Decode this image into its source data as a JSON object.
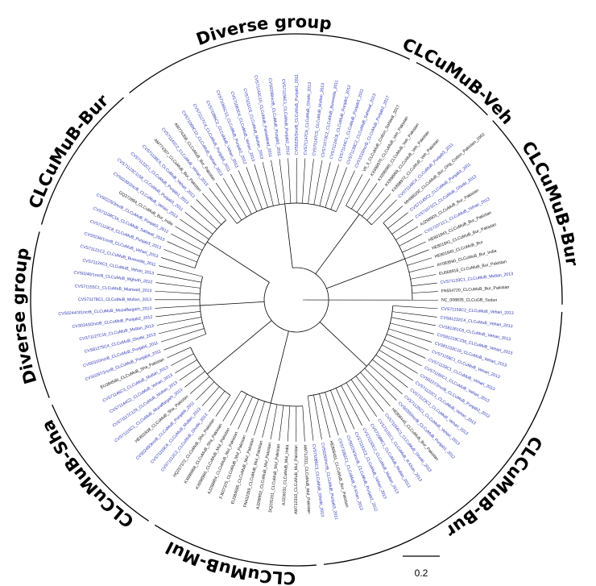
{
  "clades": [
    {
      "label": "Diverse group",
      "leaves": [
        {
          "label": "CVS71141C2_CLCuMuB_Vehari_2013",
          "color": "#2b35b5"
        },
        {
          "label": "AM774306_CLCuMuB_Bur_Pakistan",
          "color": "#111111"
        },
        {
          "label": "CVS71069C12_CLCuMuB_Vehari_2013",
          "color": "#2b35b5"
        },
        {
          "label": "CVS71127C4_CLCuMuB_Punjab5_2011",
          "color": "#2b35b5"
        },
        {
          "label": "CVS71086C2_CLCuMuB_Vehari_2013",
          "color": "#2b35b5"
        },
        {
          "label": "CVS71065C13_CLCuMuB_Punjab2_2012",
          "color": "#2b35b5"
        },
        {
          "label": "CVS71083C4_CLCuMuB_Vehari_2013",
          "color": "#2b35b5"
        },
        {
          "label": "CVS71111C6_CLCuMuB_Multan_2013",
          "color": "#2b35b5"
        },
        {
          "label": "CVS71143C10_CLCuMuB_Faisalabad_2011",
          "color": "#2b35b5"
        },
        {
          "label": "CVS0298/ncrB_CLCuMuB_Punjab1_2011",
          "color": "#2b35b5"
        },
        {
          "label": "CVS71156C1_CLCuMuB_Punjab2_2012",
          "color": "#2b35b5"
        },
        {
          "label": "CVS0229/2ncrB_CLCuMuB_Punjab1_2011",
          "color": "#2b35b5"
        },
        {
          "label": "CVS71147C6_CLCuMuB_Ghotki_2013",
          "color": "#2b35b5"
        },
        {
          "label": "CVS71147C5_CLCuMuB_Multan_2013",
          "color": "#2b35b5"
        },
        {
          "label": "CVS71073C2_CLCuMuB_Burewala_2011",
          "color": "#2b35b5"
        },
        {
          "label": "CVS71124C8_CLCuMuB_Punjab1_2012",
          "color": "#2b35b5"
        },
        {
          "label": "CVS71144C1_CLCuMuB_Punjab3_2011",
          "color": "#2b35b5"
        },
        {
          "label": "CVS71139C2_CLCuMuB_Sahiwal_2013",
          "color": "#2b35b5"
        },
        {
          "label": "CVS1510/ncrB_CLCuMuB_Punjab2_2017",
          "color": "#2b35b5"
        }
      ]
    },
    {
      "label": "CLCuMuB-Veh",
      "leaves": [
        {
          "label": "V8_3_CLCuMuB_Cotton_Sahiwal_2017",
          "color": "#111111"
        },
        {
          "label": "KX898970_CLCuMuB_Veh_Pakistan",
          "color": "#111111"
        },
        {
          "label": "KX898965_CLCuMuB_Veh_Pakistan",
          "color": "#111111"
        },
        {
          "label": "KX898969_CLCuMuB_Veh_Pakistan",
          "color": "#111111"
        },
        {
          "label": "KX898972_CLCuMuB_Veh_Pakistan",
          "color": "#111111"
        },
        {
          "label": "CVS71149C4_CLCuMuB_Punjab3_2011",
          "color": "#2b35b5"
        }
      ]
    },
    {
      "label": "CLCuMuB-Bur",
      "leaves": [
        {
          "label": "MH686202_CLCuMuB_Bur_Orig_Cotton_Pakistan_2002",
          "color": "#111111"
        },
        {
          "label": "CVS71145C2_CLCuMuB_Punjab3_2011",
          "color": "#2b35b5"
        },
        {
          "label": "CVS71071C1_CLCuMuB_Ghotki_2013",
          "color": "#2b35b5"
        },
        {
          "label": "AJ298903_CLCuMuB_Bur_Pakistan",
          "color": "#111111"
        },
        {
          "label": "CVS71071C1_CLCuMuB_Vehari_2013",
          "color": "#2b35b5"
        },
        {
          "label": "HE801843_CLCuMuB_Bur_Pakistan",
          "color": "#111111"
        },
        {
          "label": "HE801841_CLCuMuB_Bur_Pakistan",
          "color": "#111111"
        },
        {
          "label": "HE801840_CLCuMuB_Bur",
          "color": "#111111"
        },
        {
          "label": "AY083590_CLCuMuB_Bur_India",
          "color": "#111111"
        },
        {
          "label": "EU068918_CLCuMuB_Bur_Pakistan",
          "color": "#111111"
        },
        {
          "label": "CVS71133C1_CLCuMuB_Multan_2013",
          "color": "#2b35b5"
        },
        {
          "label": "FN554720_CLCuMuB_Bur_Pakistan",
          "color": "#111111"
        },
        {
          "label": "NC_008835_CLCuGB_Sudan",
          "color": "#111111"
        }
      ]
    },
    {
      "label": "CLCuMuB-Bur",
      "leaves": [
        {
          "label": "CVS71159C2_CLCuMuB_Vehari_2013",
          "color": "#2b35b5"
        },
        {
          "label": "CVS81232C4_CLCuMuB_Vehari_2013",
          "color": "#2b35b5"
        },
        {
          "label": "CVS81261C6_CLCuMuB_Vehari_2013",
          "color": "#2b35b5"
        },
        {
          "label": "CVS81219C236_CLCuMuB_Vehari_2013",
          "color": "#2b35b5"
        },
        {
          "label": "CVS81233C16_CLCuMuB_Vehari_2013",
          "color": "#2b35b5"
        },
        {
          "label": "CVS71156C1_CLCuMuB_Vehari_2013",
          "color": "#2b35b5"
        },
        {
          "label": "CVS71133C1_CLCuMuB_Vehari_2013",
          "color": "#2b35b5"
        },
        {
          "label": "CVS71160C1_CLCuMuB_Vehari_2013",
          "color": "#2b35b5"
        },
        {
          "label": "CVS0227/2ncrB_CLCuMuB_Punjab2_2012",
          "color": "#2b35b5"
        },
        {
          "label": "CVS71122C1_CLCuMuB_Vehari_2013",
          "color": "#2b35b5"
        },
        {
          "label": "CVS71123C2_CLCuMuB_Vehari_2013",
          "color": "#2b35b5"
        },
        {
          "label": "CVS71125C1_CLCuMuB_Vehari_2013",
          "color": "#2b35b5"
        },
        {
          "label": "CVS0300/ncrB_CLCuMuB_Punjab1_2012",
          "color": "#2b35b5"
        },
        {
          "label": "HE806446_CLCuMuB_Bur_Pakistan",
          "color": "#111111"
        },
        {
          "label": "CVS71154C1_CLCuMuB_Ghotki_2013",
          "color": "#2b35b5"
        },
        {
          "label": "CVS71131C1_CLCuMuB_R.Khan_2013",
          "color": "#2b35b5"
        },
        {
          "label": "CVS71088C1_CLCuMuB_Multan_2013",
          "color": "#2b35b5"
        },
        {
          "label": "CVS71150C2_CLCuMuB_Multan_2013",
          "color": "#2b35b5"
        },
        {
          "label": "CVS71151C2_CLCuMuB_Vehari_2013",
          "color": "#2b35b5"
        },
        {
          "label": "CVS0224/3ncrB_CLCuMuB_Punjab2_2012",
          "color": "#2b35b5"
        },
        {
          "label": "CVS71082C1_CLCuMuB_R.Khan_2013",
          "color": "#2b35b5"
        },
        {
          "label": "HE806451_CLCuMuB_Bur_Pakistan",
          "color": "#111111"
        },
        {
          "label": "CVS0293/ncrB_CLCuMuB_Punjab3_2011",
          "color": "#2b35b5"
        },
        {
          "label": "CVS71085C3_CLCuMuB_Ghotki_2013",
          "color": "#2b35b5"
        }
      ]
    },
    {
      "label": "CLCuMuB-Mul",
      "leaves": [
        {
          "label": "AM712311_CLCuMuB_Mul_Pakistan",
          "color": "#111111"
        },
        {
          "label": "AM712310_CLCuMuB_Mul_Pakistan",
          "color": "#111111"
        },
        {
          "label": "AJ316031_CLCuMuB_Mul_India",
          "color": "#111111"
        },
        {
          "label": "DQ191161_CLCuMuB_Mul_Pakistan",
          "color": "#111111"
        },
        {
          "label": "AJ298902_CLCuMuB_Mul_Pakistan",
          "color": "#111111"
        },
        {
          "label": "FN432359_CLCuMuB_Mul_Pakistan",
          "color": "#111111"
        },
        {
          "label": "EU384595_CLCuMuB_Mul_Pakistan",
          "color": "#111111"
        },
        {
          "label": "FJ607375_CLCuMuB_Mul_Pakistan",
          "color": "#111111"
        },
        {
          "label": "AJ298904_CLCuMuB_Mul_Pakistan",
          "color": "#111111"
        },
        {
          "label": "KX898966_CLCuMuB_Mul_Pakistan",
          "color": "#111111"
        },
        {
          "label": "KX898968_CLCuMuB_Sha_Pakistan",
          "color": "#111111"
        }
      ]
    },
    {
      "label": "CLCuMuB-Sha",
      "leaves": [
        {
          "label": "HQ257372_CLCuMuB_Sha_Pakistan",
          "color": "#111111"
        },
        {
          "label": "CVS71112C2_CLCuMuB_Ghotki_2013",
          "color": "#2b35b5"
        },
        {
          "label": "CVS71119C6_CLCuMuB_Multan_2013",
          "color": "#2b35b5"
        },
        {
          "label": "CVS0248/3ncrB_CLCuMuB_Punjab6_2011",
          "color": "#2b35b5"
        },
        {
          "label": "HE801838_CLCuMuB_Sha_Pakistan",
          "color": "#111111"
        },
        {
          "label": "CVS71116C1_CLCuMuB_Muzaffargarh_2013",
          "color": "#2b35b5"
        },
        {
          "label": "CVS71117C129_CLCuMuB_Multan_2013",
          "color": "#2b35b5"
        },
        {
          "label": "CVS71144C2_CLCuMuB_Vehari_2013",
          "color": "#2b35b5"
        },
        {
          "label": "CVS71146C3_CLCuMuB_Multan_2013",
          "color": "#2b35b5"
        },
        {
          "label": "EU384586_CLCuMuB_Sha_Pakistan",
          "color": "#111111"
        }
      ]
    },
    {
      "label": "Diverse group",
      "leaves": [
        {
          "label": "CVS0297/1ncrB_CLCuMuB_Punjab4_2011",
          "color": "#2b35b5"
        },
        {
          "label": "CVS0310/ncrB_CLCuMuB_Punjab5_2011",
          "color": "#2b35b5"
        },
        {
          "label": "CVS81275C4_CLCuMuB_Ghotki_2013",
          "color": "#2b35b5"
        },
        {
          "label": "CVS71127C16_CLCuMuB_Multan_2013",
          "color": "#2b35b5"
        },
        {
          "label": "CVS0243/2ncrB_CLCuMuB_Punjab2_2012",
          "color": "#2b35b5"
        },
        {
          "label": "CVS0244/3/1ncrB_CLCuMuB_Muzaffargarh_2013",
          "color": "#2b35b5"
        },
        {
          "label": "CVS71178C1_CLCuMuB_Multan_2013",
          "color": "#2b35b5"
        },
        {
          "label": "CVS71155C1_CLCuMuB_Mianwali_2013",
          "color": "#2b35b5"
        },
        {
          "label": "CVS0240/1ncrB_CLCuMuB_Mghuth_2012",
          "color": "#2b35b5"
        },
        {
          "label": "CVS71124C3_CLCuMuB_Vehari_2013",
          "color": "#2b35b5"
        },
        {
          "label": "CVS71121C2_CLCuMuB_Burewala_2011",
          "color": "#2b35b5"
        }
      ]
    },
    {
      "label": "CLCuMuB-Bur",
      "leaves": [
        {
          "label": "CVS0236/1ncrB_CLCuMuB_Vehari_2013",
          "color": "#2b35b5"
        },
        {
          "label": "CVS71119C8_CLCuMuB_Punjab3_2013",
          "color": "#2b35b5"
        },
        {
          "label": "CVS71108C16_CLCuMuB_Sahiwal_2013",
          "color": "#2b35b5"
        },
        {
          "label": "CVS0225/3ncrB_CLCuMuB_Punjab3_2012",
          "color": "#2b35b5"
        },
        {
          "label": "GQ372894_CLCuMuB_Bur_India",
          "color": "#111111"
        },
        {
          "label": "CVS0230/2ncrB_CLCuMuB_Vehari_2013",
          "color": "#2b35b5"
        },
        {
          "label": "CVS71123C1158_CLCuMuB_Punjab3_2011",
          "color": "#2b35b5"
        },
        {
          "label": "CVS71132C1_CLCuMuB_Punjab1_2013",
          "color": "#2b35b5"
        },
        {
          "label": "CVS71108C5_CLCuMuB_Vehari_2013",
          "color": "#2b35b5"
        },
        {
          "label": "AM774307_CLCuMuB_Bur_Pakistan",
          "color": "#111111"
        }
      ]
    }
  ],
  "scale_bar": {
    "label": "0.2"
  }
}
